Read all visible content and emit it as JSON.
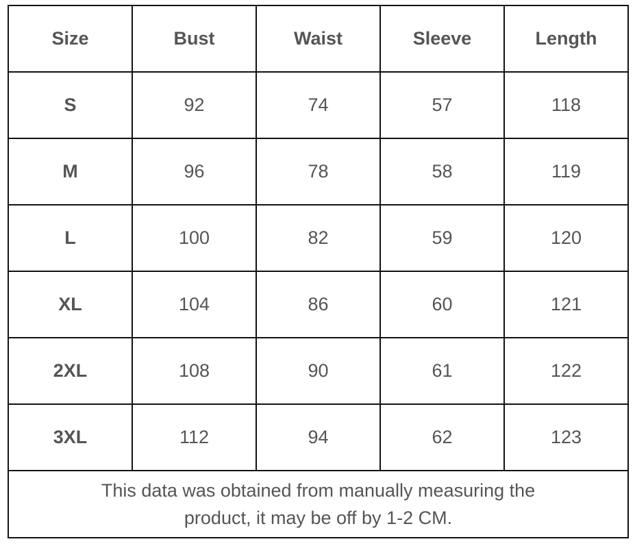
{
  "table": {
    "headers": [
      "Size",
      "Bust",
      "Waist",
      "Sleeve",
      "Length"
    ],
    "rows": [
      [
        "S",
        "92",
        "74",
        "57",
        "118"
      ],
      [
        "M",
        "96",
        "78",
        "58",
        "119"
      ],
      [
        "L",
        "100",
        "82",
        "59",
        "120"
      ],
      [
        "XL",
        "104",
        "86",
        "60",
        "121"
      ],
      [
        "2XL",
        "108",
        "90",
        "61",
        "122"
      ],
      [
        "3XL",
        "112",
        "94",
        "62",
        "123"
      ]
    ],
    "note_line1": "This data was obtained from manually measuring the",
    "note_line2": "product, it may be off by 1-2 CM."
  }
}
